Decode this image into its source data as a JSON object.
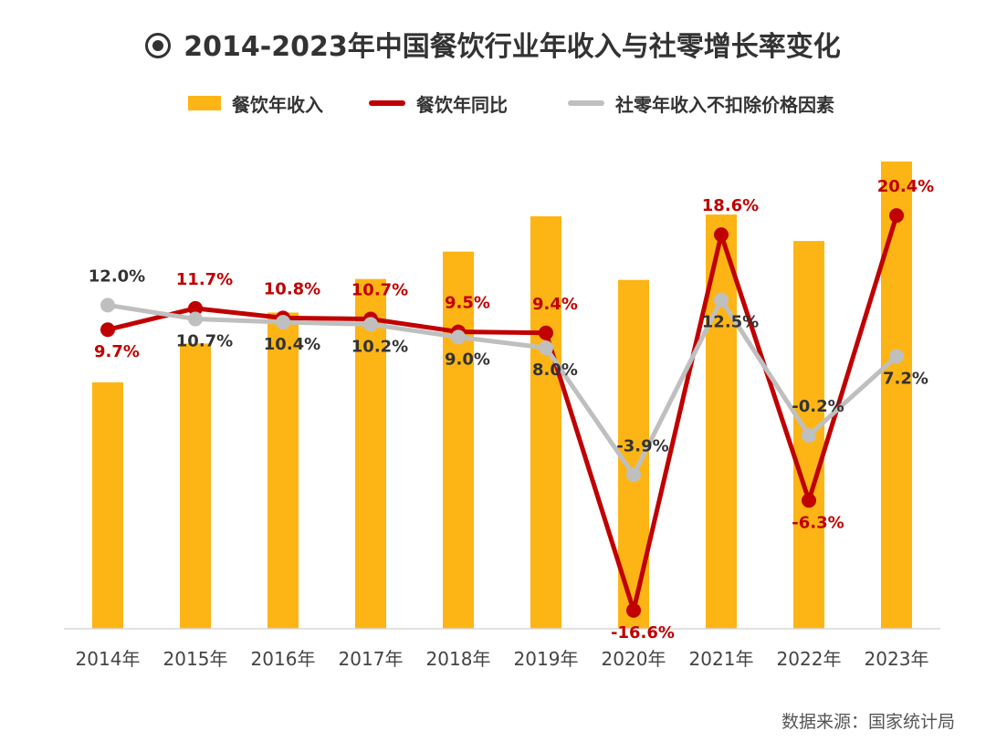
{
  "title": "2014-2023年中国餐饮行业年收入与社零增长率变化",
  "title_icon": "target-circle-icon",
  "source": "数据来源：国家统计局",
  "colors": {
    "bar": "#FDB515",
    "yoy_line": "#C00000",
    "retail_line": "#BFBFBF",
    "axis": "#D9D9D9",
    "label_dark": "#333333"
  },
  "chart_data": {
    "type": "bar+line",
    "title": "2014-2023年中国餐饮行业年收入与社零增长率变化",
    "categories": [
      "2014年",
      "2015年",
      "2016年",
      "2017年",
      "2018年",
      "2019年",
      "2020年",
      "2021年",
      "2022年",
      "2023年"
    ],
    "legend": [
      "餐饮年收入",
      "餐饮年同比",
      "社零年收入不扣除价格因素"
    ],
    "legend_position": "top",
    "series": [
      {
        "name": "餐饮年收入",
        "type": "bar",
        "values": [
          2.79,
          3.23,
          3.58,
          3.96,
          4.27,
          4.67,
          3.95,
          4.69,
          4.39,
          5.29
        ],
        "data_labels": false
      },
      {
        "name": "餐饮年同比",
        "type": "line",
        "values": [
          9.7,
          11.7,
          10.8,
          10.7,
          9.5,
          9.4,
          -16.6,
          18.6,
          -6.3,
          20.4
        ],
        "labels": [
          "9.7%",
          "11.7%",
          "10.8%",
          "10.7%",
          "9.5%",
          "9.4%",
          "-16.6%",
          "18.6%",
          "-6.3%",
          "20.4%"
        ]
      },
      {
        "name": "社零年收入不扣除价格因素",
        "type": "line",
        "values": [
          12.0,
          10.7,
          10.4,
          10.2,
          9.0,
          8.0,
          -3.9,
          12.5,
          -0.2,
          7.2
        ],
        "labels": [
          "12.0%",
          "10.7%",
          "10.4%",
          "10.2%",
          "9.0%",
          "8.0%",
          "-3.9%",
          "12.5%",
          "-0.2%",
          "7.2%"
        ]
      }
    ],
    "bar_axis_range": [
      0,
      5.3
    ],
    "line_axis_range": [
      -22,
      24
    ],
    "grid": false
  }
}
